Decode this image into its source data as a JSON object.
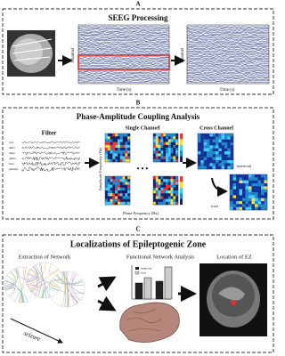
{
  "panel_a": {
    "label": "A",
    "title": "SEEG Processing",
    "y_axis": "Channel",
    "x_axis": "Time (s)"
  },
  "panel_b": {
    "label": "B",
    "title": "Phase-Amplitude Coupling Analysis",
    "filter": "Filter",
    "bands": [
      "raw",
      "delta",
      "theta",
      "alpha",
      "beta",
      "gamma"
    ],
    "single_channel": "Single Channel",
    "y_axis": "Amplitude Frequency (Hz)",
    "x_axis": "Phase Frequency (Hz)",
    "cross_channel": "Cross Channel",
    "interictal": "interictal",
    "ictal": "ictal"
  },
  "panel_c": {
    "label": "C",
    "title": "Localizations of Epileptogenic Zone",
    "extraction": "Extraction of Network",
    "seizure": "seizure",
    "functional": "Functional Network Analysis",
    "legend": [
      "interictal",
      "ictal"
    ],
    "location": "Location of EZ"
  }
}
